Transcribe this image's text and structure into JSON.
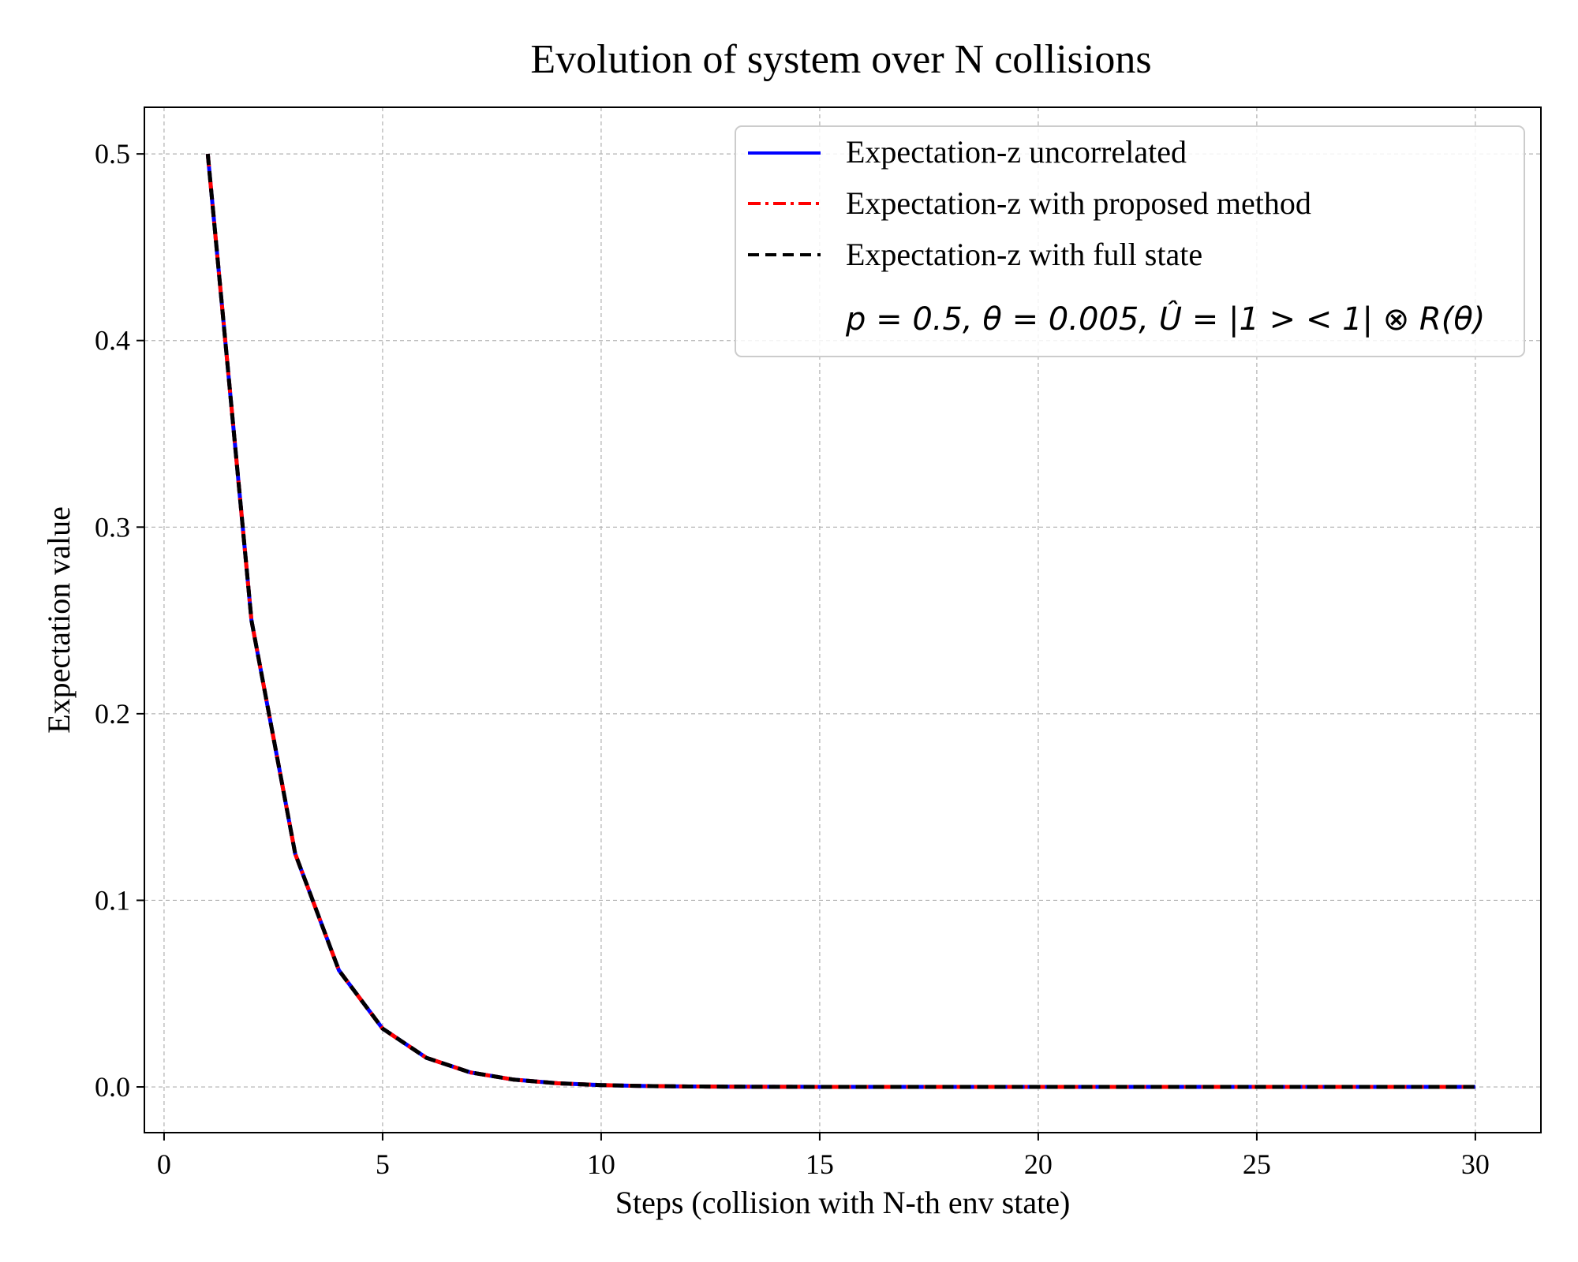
{
  "chart_data": {
    "type": "line",
    "title": "Evolution of system over N collisions",
    "xlabel": "Steps (collision with N-th env state)",
    "ylabel": "Expectation value",
    "xlim": [
      -0.45,
      31.5
    ],
    "ylim": [
      -0.0245,
      0.525
    ],
    "xticks": [
      0,
      5,
      10,
      15,
      20,
      25,
      30
    ],
    "yticks": [
      0.0,
      0.1,
      0.2,
      0.3,
      0.4,
      0.5
    ],
    "xtick_labels": [
      "0",
      "5",
      "10",
      "15",
      "20",
      "25",
      "30"
    ],
    "ytick_labels": [
      "0.0",
      "0.1",
      "0.2",
      "0.3",
      "0.4",
      "0.5"
    ],
    "grid": true,
    "legend_position": "upper right",
    "annotation": "p = 0.5, θ = 0.005, Û = |1 > < 1| ⊗ R(θ)",
    "x": [
      1,
      2,
      3,
      4,
      5,
      6,
      7,
      8,
      9,
      10,
      11,
      12,
      13,
      14,
      15,
      16,
      17,
      18,
      19,
      20,
      21,
      22,
      23,
      24,
      25,
      26,
      27,
      28,
      29,
      30
    ],
    "series": [
      {
        "name": "Expectation-z uncorrelated",
        "color": "#0000ff",
        "style": "solid",
        "values": [
          0.5,
          0.25,
          0.125,
          0.0625,
          0.03125,
          0.015625,
          0.0078125,
          0.00390625,
          0.001953,
          0.000977,
          0.000488,
          0.000244,
          0.000122,
          6.1e-05,
          3.1e-05,
          1.5e-05,
          8e-06,
          4e-06,
          2e-06,
          1e-06,
          0,
          0,
          0,
          0,
          0,
          0,
          0,
          0,
          0,
          0
        ]
      },
      {
        "name": "Expectation-z with proposed method",
        "color": "#ff0000",
        "style": "dashdot",
        "values": [
          0.5,
          0.25,
          0.125,
          0.0625,
          0.03125,
          0.015625,
          0.0078125,
          0.00390625,
          0.001953,
          0.000977,
          0.000488,
          0.000244,
          0.000122,
          6.1e-05,
          3.1e-05,
          1.5e-05,
          8e-06,
          4e-06,
          2e-06,
          1e-06,
          0,
          0,
          0,
          0,
          0,
          0,
          0,
          0,
          0,
          0
        ]
      },
      {
        "name": "Expectation-z with full state",
        "color": "#000000",
        "style": "dashed",
        "values": [
          0.5,
          0.25,
          0.125,
          0.0625,
          0.03125,
          0.015625,
          0.0078125,
          0.00390625,
          0.001953,
          0.000977,
          0.000488,
          0.000244,
          0.000122,
          6.1e-05,
          3.1e-05,
          1.5e-05,
          8e-06,
          4e-06,
          2e-06,
          1e-06,
          0,
          0,
          0,
          0,
          0,
          0,
          0,
          0,
          0,
          0
        ]
      }
    ]
  }
}
